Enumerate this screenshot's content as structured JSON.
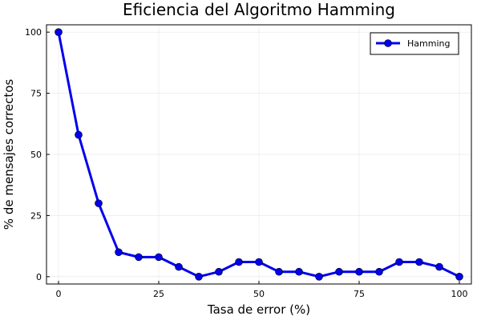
{
  "chart_data": {
    "type": "line",
    "title": "Eficiencia del Algoritmo Hamming",
    "xlabel": "Tasa de error (%)",
    "ylabel": "% de mensajes correctos",
    "xlim": [
      -3,
      103
    ],
    "ylim": [
      -3,
      103
    ],
    "xticks": [
      0,
      25,
      50,
      75,
      100
    ],
    "yticks": [
      0,
      25,
      50,
      75,
      100
    ],
    "grid": true,
    "legend_position": "top-right",
    "series": [
      {
        "name": "Hamming",
        "color": "#0000ee",
        "x": [
          0,
          5,
          10,
          15,
          20,
          25,
          30,
          35,
          40,
          45,
          50,
          55,
          60,
          65,
          70,
          75,
          80,
          85,
          90,
          95,
          100
        ],
        "y": [
          100,
          58,
          30,
          10,
          8,
          8,
          4,
          0,
          2,
          6,
          6,
          2,
          2,
          0,
          2,
          2,
          2,
          6,
          6,
          4,
          0
        ]
      }
    ]
  }
}
